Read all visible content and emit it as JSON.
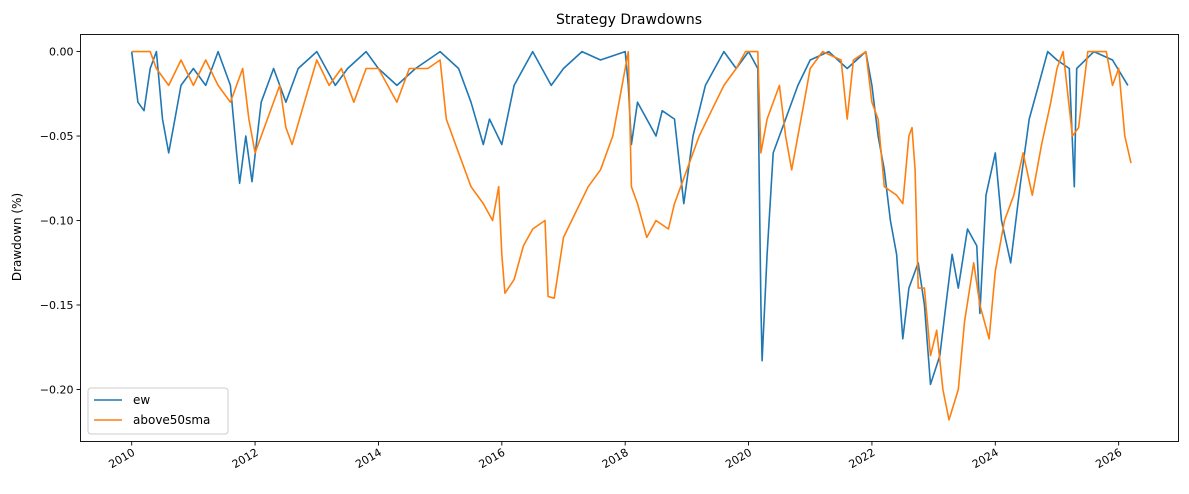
{
  "chart_data": {
    "type": "line",
    "title": "Strategy Drawdowns",
    "xlabel": "",
    "ylabel": "Drawdown (%)",
    "xlim": [
      2009.17,
      2026.97
    ],
    "ylim": [
      -0.2308,
      0.0101
    ],
    "xticks": [
      2010,
      2012,
      2014,
      2016,
      2018,
      2020,
      2022,
      2024,
      2026
    ],
    "xtick_labels": [
      "2010",
      "2012",
      "2014",
      "2016",
      "2018",
      "2020",
      "2022",
      "2024",
      "2026"
    ],
    "yticks": [
      0,
      -0.05,
      -0.1,
      -0.15,
      -0.2
    ],
    "ytick_labels": [
      "0.00",
      "−0.05",
      "−0.10",
      "−0.15",
      "−0.20"
    ],
    "grid": false,
    "legend_position": "bottom-left",
    "series": [
      {
        "name": "ew",
        "color": "#1f77b4",
        "x": [
          2010.0,
          2010.1,
          2010.2,
          2010.3,
          2010.4,
          2010.5,
          2010.6,
          2010.7,
          2010.8,
          2011.0,
          2011.2,
          2011.4,
          2011.6,
          2011.7,
          2011.75,
          2011.85,
          2011.95,
          2012.1,
          2012.3,
          2012.5,
          2012.7,
          2013.0,
          2013.3,
          2013.5,
          2013.8,
          2014.0,
          2014.3,
          2014.6,
          2015.0,
          2015.3,
          2015.5,
          2015.7,
          2015.8,
          2016.0,
          2016.2,
          2016.5,
          2016.8,
          2017.0,
          2017.3,
          2017.6,
          2018.0,
          2018.05,
          2018.1,
          2018.2,
          2018.5,
          2018.6,
          2018.8,
          2018.95,
          2019.1,
          2019.3,
          2019.6,
          2019.8,
          2020.0,
          2020.15,
          2020.2,
          2020.22,
          2020.3,
          2020.4,
          2020.6,
          2020.8,
          2021.0,
          2021.3,
          2021.6,
          2021.9,
          2022.0,
          2022.1,
          2022.2,
          2022.3,
          2022.4,
          2022.5,
          2022.6,
          2022.75,
          2022.85,
          2022.95,
          2023.1,
          2023.2,
          2023.3,
          2023.4,
          2023.55,
          2023.7,
          2023.75,
          2023.85,
          2024.0,
          2024.1,
          2024.25,
          2024.4,
          2024.55,
          2024.7,
          2024.85,
          2025.0,
          2025.2,
          2025.28,
          2025.32,
          2025.6,
          2025.9,
          2026.15
        ],
        "y": [
          0,
          -0.03,
          -0.035,
          -0.01,
          0,
          -0.04,
          -0.06,
          -0.04,
          -0.02,
          -0.01,
          -0.02,
          0,
          -0.02,
          -0.06,
          -0.078,
          -0.05,
          -0.077,
          -0.03,
          -0.01,
          -0.03,
          -0.01,
          0,
          -0.02,
          -0.01,
          0,
          -0.01,
          -0.02,
          -0.01,
          0,
          -0.01,
          -0.03,
          -0.055,
          -0.04,
          -0.055,
          -0.02,
          0,
          -0.02,
          -0.01,
          0,
          -0.005,
          0,
          -0.02,
          -0.055,
          -0.03,
          -0.05,
          -0.035,
          -0.04,
          -0.09,
          -0.05,
          -0.02,
          0,
          -0.01,
          0,
          -0.01,
          -0.15,
          -0.183,
          -0.12,
          -0.06,
          -0.04,
          -0.02,
          -0.005,
          0,
          -0.01,
          0,
          -0.02,
          -0.05,
          -0.07,
          -0.1,
          -0.12,
          -0.17,
          -0.14,
          -0.125,
          -0.15,
          -0.197,
          -0.18,
          -0.15,
          -0.12,
          -0.14,
          -0.105,
          -0.115,
          -0.155,
          -0.085,
          -0.06,
          -0.1,
          -0.125,
          -0.08,
          -0.04,
          -0.02,
          0,
          -0.005,
          -0.01,
          -0.08,
          -0.01,
          0,
          -0.005,
          -0.02
        ]
      },
      {
        "name": "above50sma",
        "color": "#ff7f0e",
        "x": [
          2010.0,
          2010.3,
          2010.4,
          2010.6,
          2010.8,
          2011.0,
          2011.2,
          2011.4,
          2011.6,
          2011.8,
          2011.9,
          2012.0,
          2012.2,
          2012.4,
          2012.5,
          2012.6,
          2012.8,
          2013.0,
          2013.2,
          2013.4,
          2013.6,
          2013.8,
          2014.0,
          2014.3,
          2014.5,
          2014.8,
          2015.0,
          2015.1,
          2015.3,
          2015.5,
          2015.7,
          2015.85,
          2015.95,
          2016.0,
          2016.05,
          2016.2,
          2016.35,
          2016.5,
          2016.7,
          2016.75,
          2016.85,
          2017.0,
          2017.2,
          2017.4,
          2017.6,
          2017.8,
          2018.0,
          2018.05,
          2018.1,
          2018.2,
          2018.35,
          2018.5,
          2018.7,
          2018.8,
          2019.0,
          2019.2,
          2019.4,
          2019.6,
          2019.8,
          2019.95,
          2020.15,
          2020.2,
          2020.3,
          2020.5,
          2020.6,
          2020.7,
          2020.9,
          2021.0,
          2021.2,
          2021.5,
          2021.6,
          2021.7,
          2021.9,
          2022.0,
          2022.1,
          2022.2,
          2022.4,
          2022.5,
          2022.6,
          2022.65,
          2022.7,
          2022.75,
          2022.85,
          2022.95,
          2023.05,
          2023.15,
          2023.25,
          2023.4,
          2023.5,
          2023.65,
          2023.75,
          2023.9,
          2024.0,
          2024.15,
          2024.3,
          2024.45,
          2024.6,
          2024.75,
          2024.9,
          2025.0,
          2025.1,
          2025.25,
          2025.35,
          2025.5,
          2025.8,
          2025.9,
          2026.0,
          2026.1,
          2026.2
        ],
        "y": [
          0,
          0,
          -0.01,
          -0.02,
          -0.005,
          -0.02,
          -0.005,
          -0.02,
          -0.03,
          -0.01,
          -0.04,
          -0.06,
          -0.04,
          -0.02,
          -0.045,
          -0.055,
          -0.03,
          -0.005,
          -0.02,
          -0.01,
          -0.03,
          -0.01,
          -0.01,
          -0.03,
          -0.01,
          -0.01,
          -0.005,
          -0.04,
          -0.06,
          -0.08,
          -0.09,
          -0.1,
          -0.08,
          -0.12,
          -0.143,
          -0.135,
          -0.115,
          -0.105,
          -0.1,
          -0.145,
          -0.146,
          -0.11,
          -0.095,
          -0.08,
          -0.07,
          -0.05,
          -0.01,
          0,
          -0.08,
          -0.09,
          -0.11,
          -0.1,
          -0.105,
          -0.09,
          -0.07,
          -0.05,
          -0.035,
          -0.02,
          -0.01,
          0,
          0,
          -0.06,
          -0.04,
          -0.02,
          -0.05,
          -0.07,
          -0.03,
          -0.01,
          0,
          -0.005,
          -0.04,
          -0.005,
          0,
          -0.03,
          -0.04,
          -0.08,
          -0.085,
          -0.09,
          -0.05,
          -0.045,
          -0.07,
          -0.14,
          -0.14,
          -0.18,
          -0.165,
          -0.2,
          -0.218,
          -0.2,
          -0.16,
          -0.125,
          -0.15,
          -0.17,
          -0.13,
          -0.1,
          -0.085,
          -0.06,
          -0.085,
          -0.055,
          -0.03,
          -0.01,
          0,
          -0.05,
          -0.045,
          0,
          0,
          -0.02,
          -0.01,
          -0.05,
          -0.066
        ]
      }
    ]
  }
}
